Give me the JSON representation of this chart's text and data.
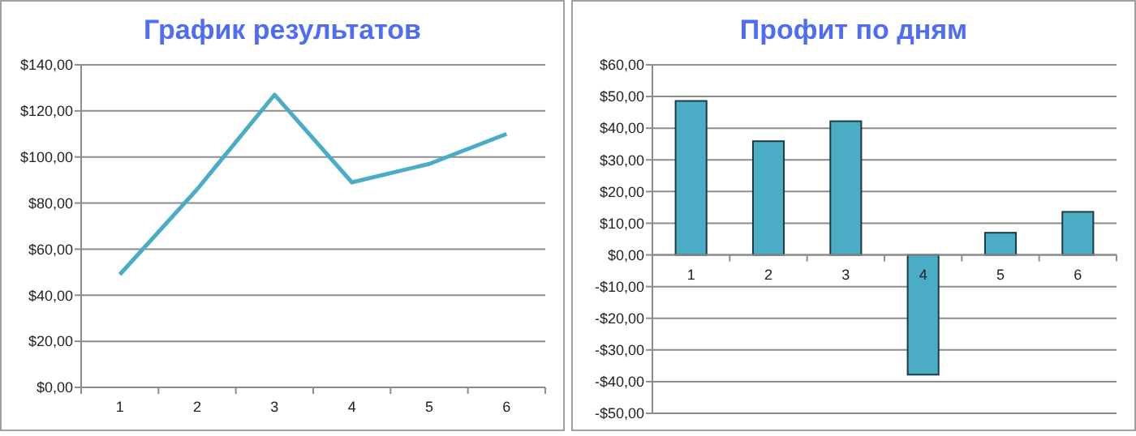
{
  "chart_data": [
    {
      "type": "line",
      "title": "График результатов",
      "categories": [
        "1",
        "2",
        "3",
        "4",
        "5",
        "6"
      ],
      "series": [
        {
          "color": "#4bacc6",
          "values": [
            49,
            86,
            127,
            89,
            97,
            110
          ]
        }
      ],
      "ylim": [
        0,
        140
      ],
      "yticks": [
        {
          "value": 0,
          "label": "$0,00"
        },
        {
          "value": 20,
          "label": "$20,00"
        },
        {
          "value": 40,
          "label": "$40,00"
        },
        {
          "value": 60,
          "label": "$60,00"
        },
        {
          "value": 80,
          "label": "$80,00"
        },
        {
          "value": 100,
          "label": "$100,00"
        },
        {
          "value": 120,
          "label": "$120,00"
        },
        {
          "value": 140,
          "label": "$140,00"
        }
      ],
      "grid": "y",
      "marker": "none"
    },
    {
      "type": "bar",
      "title": "Профит по дням",
      "categories": [
        "1",
        "2",
        "3",
        "4",
        "5",
        "6"
      ],
      "series": [
        {
          "color": "#4bacc6",
          "values": [
            48.6,
            35.9,
            42.2,
            -37.8,
            7,
            13.6
          ]
        }
      ],
      "ylim": [
        -50,
        60
      ],
      "yticks": [
        {
          "value": -50,
          "label": "-$50,00"
        },
        {
          "value": -40,
          "label": "-$40,00"
        },
        {
          "value": -30,
          "label": "-$30,00"
        },
        {
          "value": -20,
          "label": "-$20,00"
        },
        {
          "value": -10,
          "label": "-$10,00"
        },
        {
          "value": 0,
          "label": "$0,00"
        },
        {
          "value": 10,
          "label": "$10,00"
        },
        {
          "value": 20,
          "label": "$20,00"
        },
        {
          "value": 30,
          "label": "$30,00"
        },
        {
          "value": 40,
          "label": "$40,00"
        },
        {
          "value": 50,
          "label": "$50,00"
        },
        {
          "value": 60,
          "label": "$60,00"
        }
      ],
      "grid": "y"
    }
  ]
}
